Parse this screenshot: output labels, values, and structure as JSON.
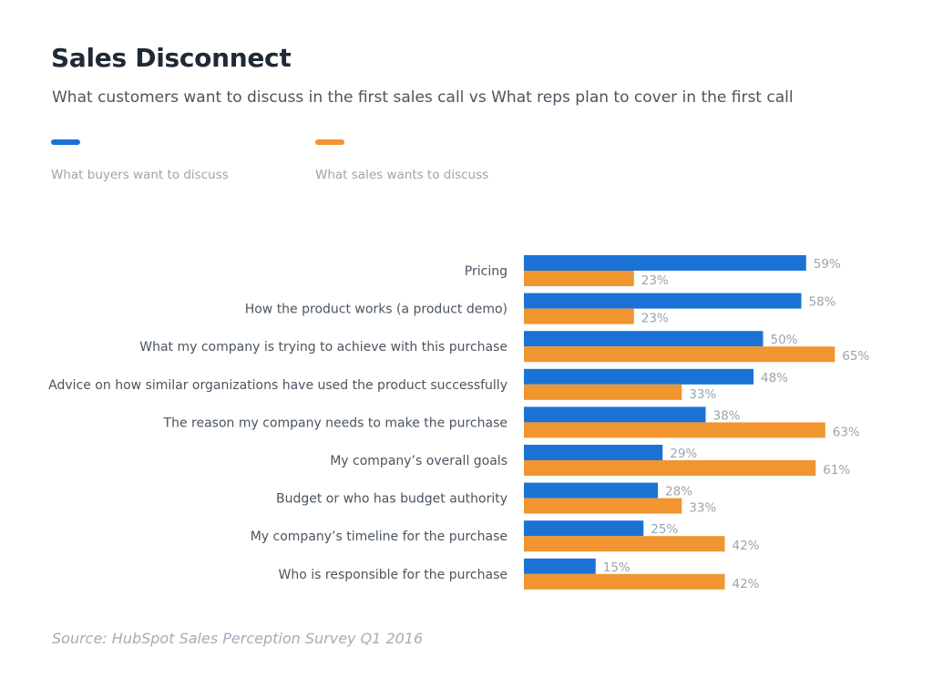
{
  "chart_data": {
    "type": "bar",
    "orientation": "horizontal",
    "title": "Sales Disconnect",
    "subtitle": "What customers want to discuss in the first sales call vs What reps plan to cover in the first call",
    "categories": [
      "Pricing",
      "How the product works (a product demo)",
      "What my company is trying to achieve with this purchase",
      "Advice on how similar organizations have used the product successfully",
      "The reason my company needs to make the purchase",
      "My company’s overall goals",
      "Budget or who has budget authority",
      "My company’s timeline for the purchase",
      "Who is responsible for the purchase"
    ],
    "series": [
      {
        "name": "What buyers want to discuss",
        "color": "#1a73d4",
        "values": [
          59,
          58,
          50,
          48,
          38,
          29,
          28,
          25,
          15
        ]
      },
      {
        "name": "What sales wants to discuss",
        "color": "#f0952f",
        "values": [
          23,
          23,
          65,
          33,
          63,
          61,
          33,
          42,
          42
        ]
      }
    ],
    "value_suffix": "%",
    "xlim": [
      0,
      100
    ],
    "grid": false,
    "legend_placement": "top-left",
    "source": "Source: HubSpot Sales Perception Survey Q1 2016"
  }
}
